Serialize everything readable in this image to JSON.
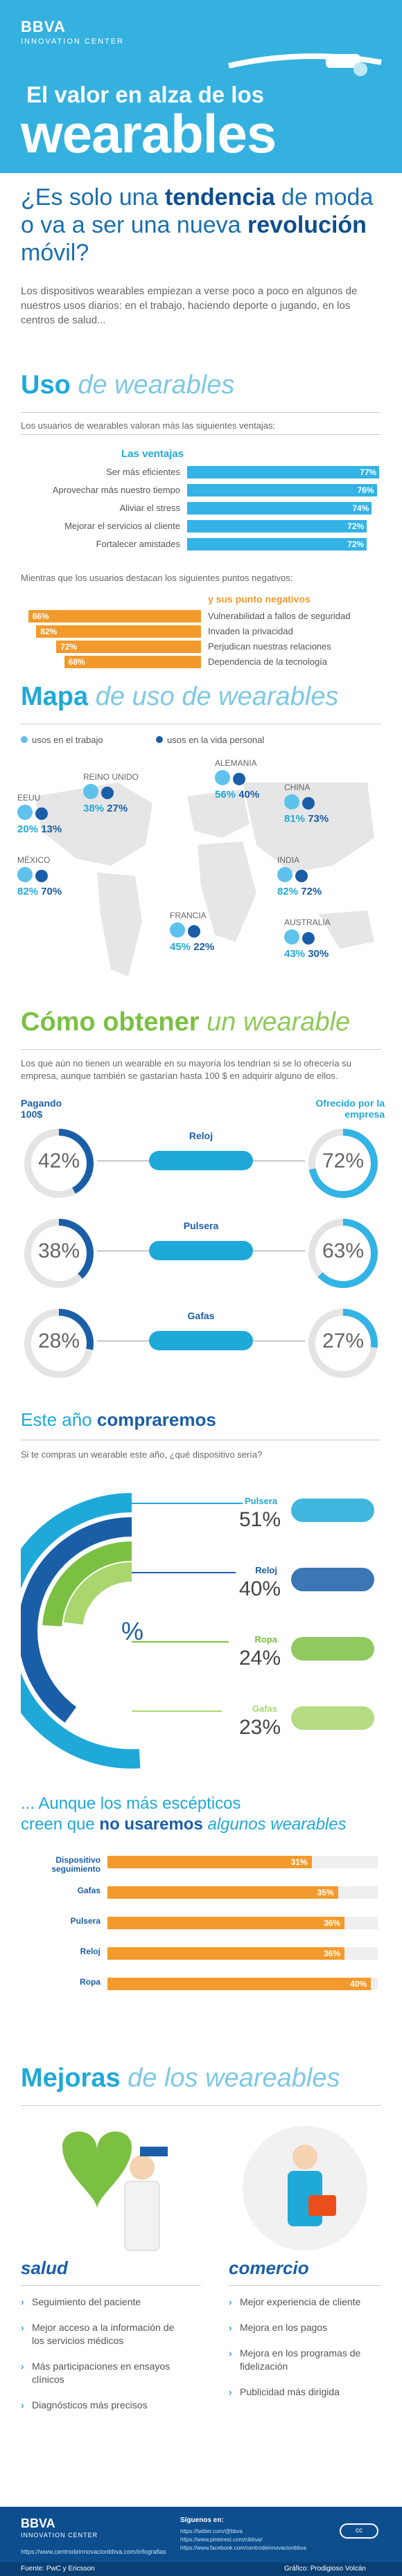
{
  "header": {
    "brand": "BBVA",
    "brand_sub": "INNOVATION CENTER",
    "title_line1": "El valor en alza de los",
    "title_line2": "wearables"
  },
  "intro": {
    "question_part1": "¿Es solo una ",
    "question_bold1": "tendencia",
    "question_part2": " de moda o va a ser una nueva ",
    "question_bold2": "revolución",
    "question_part3": " móvil?",
    "paragraph": "Los dispositivos wearables empiezan a verse poco a poco en algunos de nuestros usos diarios: en el trabajo, haciendo deporte o jugando, en los centros de salud..."
  },
  "uso": {
    "title_bold": "Uso",
    "title_rest": " de wearables",
    "lead": "Los usuarios de wearables valoran más las siguientes ventajas:",
    "adv_title": "Las ventajas",
    "advantages": [
      {
        "label": "Ser más eficientes",
        "value": 77
      },
      {
        "label": "Aprovechar más nuestro tiempo",
        "value": 76
      },
      {
        "label": "Aliviar el stress",
        "value": 74
      },
      {
        "label": "Mejorar el servicios al cliente",
        "value": 72
      },
      {
        "label": "Fortalecer amistades",
        "value": 72
      }
    ],
    "neg_lead": "Mientras que los usuarios destacan los siguientes puntos negativos:",
    "neg_title": "y sus punto negativos",
    "negatives": [
      {
        "label": "Vulnerabilidad a fallos de seguridad",
        "value": 86
      },
      {
        "label": "Invaden la privacidad",
        "value": 82
      },
      {
        "label": "Perjudican nuestras relaciones",
        "value": 72
      },
      {
        "label": "Dependencia de la tecnología",
        "value": 68
      }
    ]
  },
  "mapa": {
    "title_bold": "Mapa",
    "title_rest": " de uso de wearables",
    "legend_work": "usos en el trabajo",
    "legend_life": "usos en la vida personal",
    "countries": [
      {
        "name": "EEUU",
        "work": "20%",
        "life": "13%"
      },
      {
        "name": "REINO UNIDO",
        "work": "38%",
        "life": "27%"
      },
      {
        "name": "ALEMANIA",
        "work": "56%",
        "life": "40%"
      },
      {
        "name": "CHINA",
        "work": "81%",
        "life": "73%"
      },
      {
        "name": "MÉXICO",
        "work": "82%",
        "life": "70%"
      },
      {
        "name": "INDIA",
        "work": "82%",
        "life": "72%"
      },
      {
        "name": "FRANCIA",
        "work": "45%",
        "life": "22%"
      },
      {
        "name": "AUSTRALIA",
        "work": "43%",
        "life": "30%"
      }
    ]
  },
  "obtener": {
    "title_bold": "Cómo obtener",
    "title_rest": " un wearable",
    "lead": "Los que aún no tienen un wearable en su mayoría los tendrían si se lo ofrecería su empresa, aunque también se gastarían hasta 100 $ en adquirir alguno de ellos.",
    "left_title": "Pagando 100$",
    "right_title": "Ofrecido por la empresa",
    "items": [
      {
        "device": "Reloj",
        "paying": "42%",
        "company": "72%",
        "paying_v": 42,
        "company_v": 72
      },
      {
        "device": "Pulsera",
        "paying": "38%",
        "company": "63%",
        "paying_v": 38,
        "company_v": 63
      },
      {
        "device": "Gafas",
        "paying": "28%",
        "company": "27%",
        "paying_v": 28,
        "company_v": 27
      }
    ]
  },
  "compraremos": {
    "title_rest": "Este año ",
    "title_bold": "compraremos",
    "lead": "Si te compras un wearable este año, ¿qué dispositivo sería?",
    "center": "%",
    "items": [
      {
        "name": "Pulsera",
        "value": "51%",
        "v": 51
      },
      {
        "name": "Reloj",
        "value": "40%",
        "v": 40
      },
      {
        "name": "Ropa",
        "value": "24%",
        "v": 24
      },
      {
        "name": "Gafas",
        "value": "23%",
        "v": 23
      }
    ]
  },
  "no_usaremos": {
    "line1": "... Aunque los más escépticos",
    "line2_a": "creen que ",
    "line2_bold": "no usaremos",
    "line2_b": " algunos wearables",
    "items": [
      {
        "label": "Dispositivo seguimiento",
        "value": 31
      },
      {
        "label": "Gafas",
        "value": 35
      },
      {
        "label": "Pulsera",
        "value": 36
      },
      {
        "label": "Reloj",
        "value": 36
      },
      {
        "label": "Ropa",
        "value": 40
      }
    ]
  },
  "mejoras": {
    "title_bold": "Mejoras",
    "title_rest": " de los weareables",
    "salud_title": "salud",
    "salud_items": [
      "Seguimiento del paciente",
      "Mejor acceso a la información de los servicios médicos",
      "Más participaciones en ensayos clínicos",
      "Diagnósticos más precisos"
    ],
    "comercio_title": "comercio",
    "comercio_items": [
      "Mejor experiencia de cliente",
      "Mejora en los pagos",
      "Mejora en los programas de fidelización",
      "Publicidad más dirigida"
    ]
  },
  "footer": {
    "brand": "BBVA",
    "brand_sub": "INNOVATION CENTER",
    "url": "https://www.centrodeinnovacionbbva.com/infografias",
    "follow": "Síguenos en:",
    "links": [
      "https://twitter.com/@bbva",
      "https://www.pinterest.com/cibbva/",
      "https://www.facebook.com/centrodeinnovacionbbva"
    ],
    "source": "Fuente: PwC y Ericsson",
    "credit": "Gráfico: Prodigioso Volcán"
  }
}
